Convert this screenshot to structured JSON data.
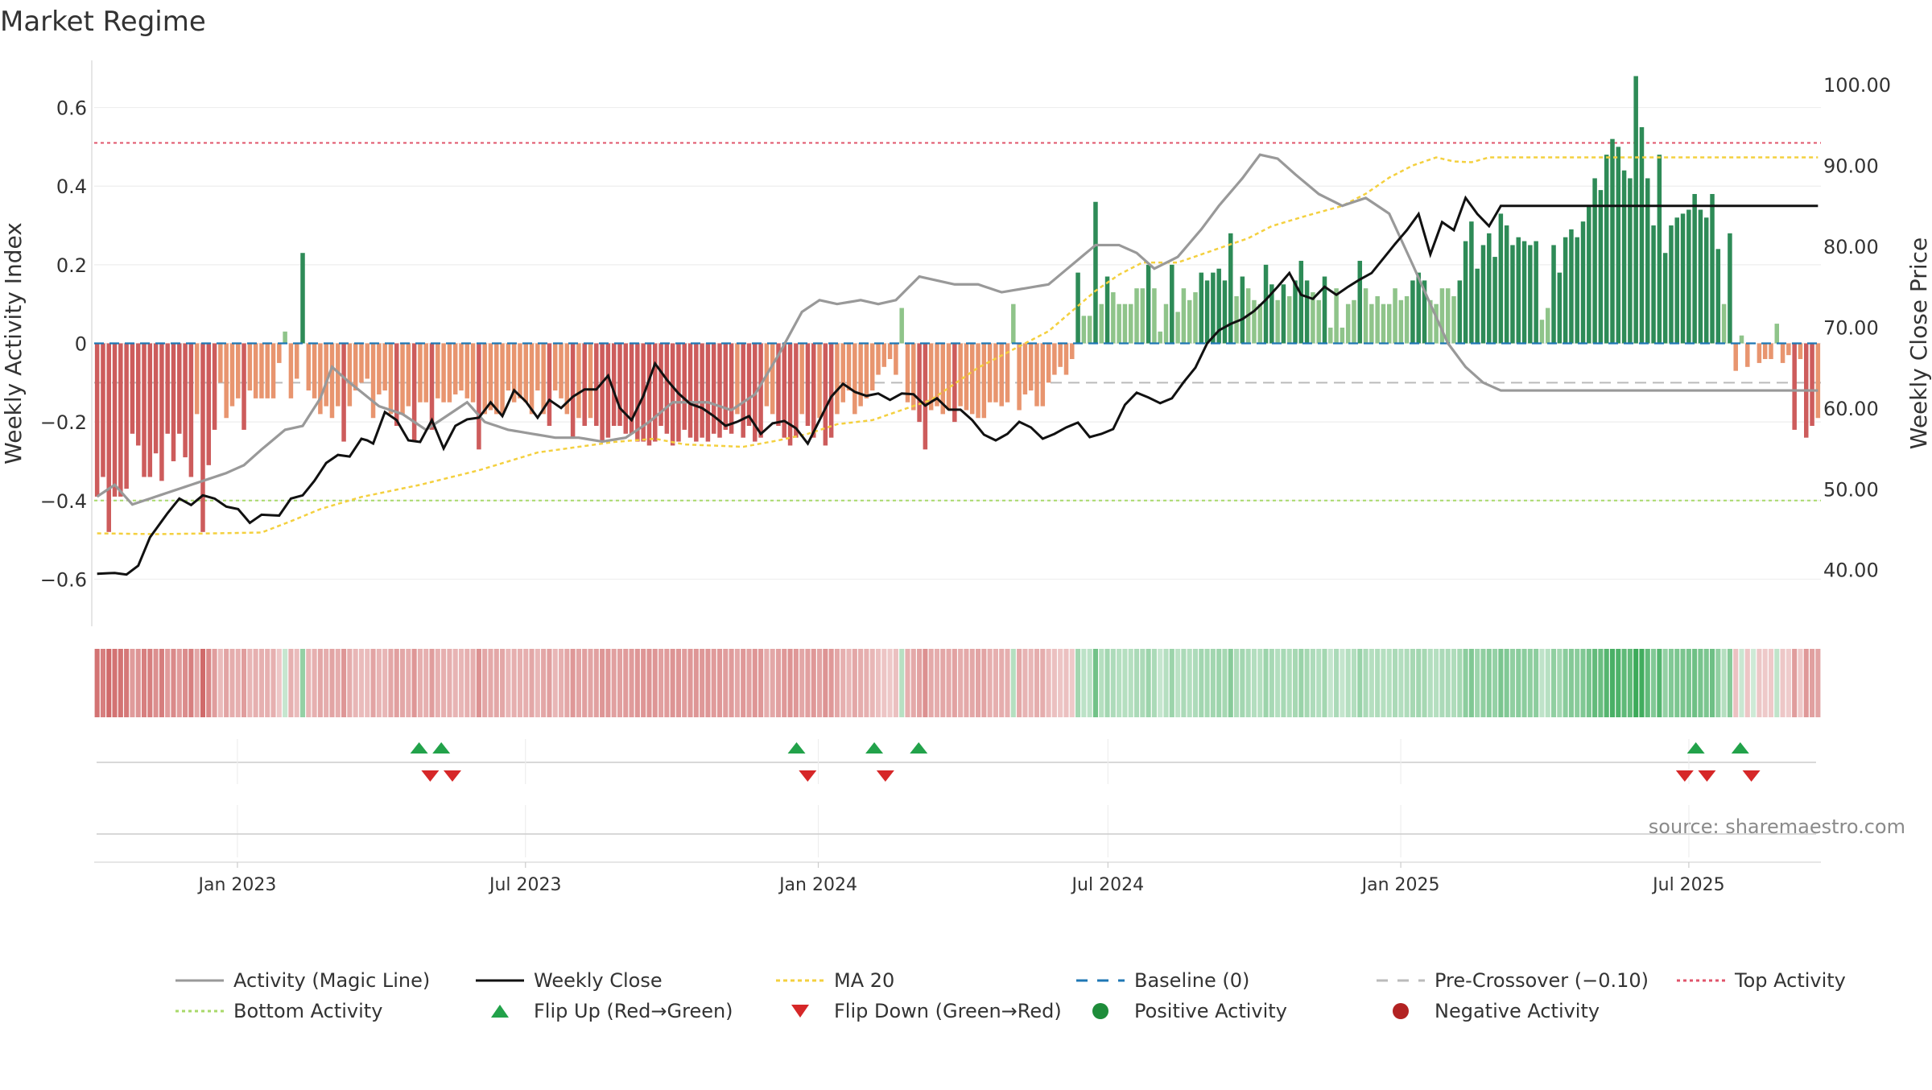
{
  "title": "Market Regime",
  "source": "source: sharemaestro.com",
  "chart_data": {
    "type": "bar",
    "title": "Market Regime",
    "x_start": "2022-10-03",
    "x_end": "2025-09-22",
    "left_axis": {
      "label": "Weekly Activity Index",
      "ylim": [
        -0.72,
        0.72
      ],
      "ticks": [
        -0.6,
        -0.4,
        -0.2,
        0,
        0.2,
        0.4,
        0.6
      ],
      "tick_labels": [
        "−0.6",
        "−0.4",
        "−0.2",
        "0",
        "0.2",
        "0.4",
        "0.6"
      ]
    },
    "right_axis": {
      "label": "Weekly Close Price",
      "ylim": [
        33,
        103
      ],
      "ticks": [
        40,
        50,
        60,
        70,
        80,
        90,
        100
      ],
      "tick_labels": [
        "40.00",
        "50.00",
        "60.00",
        "70.00",
        "80.00",
        "90.00",
        "100.00"
      ]
    },
    "x_ticks": [
      {
        "date": "2023-01-01",
        "label": "Jan 2023"
      },
      {
        "date": "2023-07-01",
        "label": "Jul 2023"
      },
      {
        "date": "2024-01-01",
        "label": "Jan 2024"
      },
      {
        "date": "2024-07-01",
        "label": "Jul 2024"
      },
      {
        "date": "2025-01-01",
        "label": "Jan 2025"
      },
      {
        "date": "2025-07-01",
        "label": "Jul 2025"
      }
    ],
    "reference_lines": {
      "top_activity": 0.51,
      "bottom_activity": -0.4,
      "pre_crossover": -0.1,
      "baseline": 0
    },
    "keypoints": {
      "activity": [
        [
          0,
          -0.39
        ],
        [
          3,
          -0.36
        ],
        [
          6,
          -0.41
        ],
        [
          10,
          -0.39
        ],
        [
          14,
          -0.37
        ],
        [
          18,
          -0.35
        ],
        [
          22,
          -0.33
        ],
        [
          25,
          -0.31
        ],
        [
          28,
          -0.27
        ],
        [
          32,
          -0.22
        ],
        [
          35,
          -0.21
        ],
        [
          38,
          -0.14
        ],
        [
          40,
          -0.06
        ],
        [
          43,
          -0.1
        ],
        [
          48,
          -0.16
        ],
        [
          52,
          -0.18
        ],
        [
          56,
          -0.22
        ],
        [
          60,
          -0.18
        ],
        [
          63,
          -0.15
        ],
        [
          66,
          -0.2
        ],
        [
          70,
          -0.22
        ],
        [
          74,
          -0.23
        ],
        [
          78,
          -0.24
        ],
        [
          82,
          -0.24
        ],
        [
          86,
          -0.25
        ],
        [
          90,
          -0.24
        ],
        [
          94,
          -0.2
        ],
        [
          98,
          -0.15
        ],
        [
          101,
          -0.15
        ],
        [
          104,
          -0.15
        ],
        [
          108,
          -0.17
        ],
        [
          112,
          -0.13
        ],
        [
          116,
          -0.03
        ],
        [
          120,
          0.08
        ],
        [
          123,
          0.11
        ],
        [
          126,
          0.1
        ],
        [
          130,
          0.11
        ],
        [
          133,
          0.1
        ],
        [
          136,
          0.11
        ],
        [
          140,
          0.17
        ],
        [
          143,
          0.16
        ],
        [
          146,
          0.15
        ],
        [
          150,
          0.15
        ],
        [
          154,
          0.13
        ],
        [
          158,
          0.14
        ],
        [
          162,
          0.15
        ],
        [
          166,
          0.2
        ],
        [
          170,
          0.25
        ],
        [
          174,
          0.25
        ],
        [
          177,
          0.23
        ],
        [
          180,
          0.19
        ],
        [
          184,
          0.22
        ],
        [
          188,
          0.29
        ],
        [
          191,
          0.35
        ],
        [
          195,
          0.42
        ],
        [
          198,
          0.48
        ],
        [
          201,
          0.47
        ],
        [
          204,
          0.43
        ],
        [
          208,
          0.38
        ],
        [
          212,
          0.35
        ],
        [
          216,
          0.37
        ],
        [
          220,
          0.33
        ],
        [
          224,
          0.2
        ],
        [
          227,
          0.1
        ],
        [
          230,
          0.0
        ],
        [
          233,
          -0.06
        ],
        [
          236,
          -0.1
        ],
        [
          239,
          -0.12
        ]
      ],
      "close": [
        [
          0,
          39.5
        ],
        [
          3,
          39.6
        ],
        [
          5,
          39.4
        ],
        [
          7,
          40.5
        ],
        [
          9,
          44
        ],
        [
          12,
          47
        ],
        [
          14,
          48.8
        ],
        [
          16,
          48
        ],
        [
          18,
          49.2
        ],
        [
          20,
          48.8
        ],
        [
          22,
          47.8
        ],
        [
          24,
          47.5
        ],
        [
          26,
          45.8
        ],
        [
          28,
          46.8
        ],
        [
          31,
          46.7
        ],
        [
          33,
          48.8
        ],
        [
          35,
          49.2
        ],
        [
          37,
          51
        ],
        [
          39,
          53.2
        ],
        [
          41,
          54.2
        ],
        [
          43,
          54
        ],
        [
          45,
          56.2
        ],
        [
          46,
          56
        ],
        [
          47,
          55.6
        ],
        [
          49,
          59.5
        ],
        [
          51,
          58.5
        ],
        [
          53,
          56
        ],
        [
          55,
          55.8
        ],
        [
          57,
          58.5
        ],
        [
          59,
          55
        ],
        [
          61,
          57.8
        ],
        [
          63,
          58.6
        ],
        [
          65,
          58.8
        ],
        [
          67,
          60.7
        ],
        [
          69,
          59
        ],
        [
          71,
          62.2
        ],
        [
          73,
          60.8
        ],
        [
          75,
          58.8
        ],
        [
          77,
          61
        ],
        [
          79,
          60
        ],
        [
          81,
          61.4
        ],
        [
          83,
          62.3
        ],
        [
          85,
          62.3
        ],
        [
          87,
          64
        ],
        [
          89,
          60
        ],
        [
          91,
          58.5
        ],
        [
          93,
          61.5
        ],
        [
          95,
          65.5
        ],
        [
          97,
          63.5
        ],
        [
          99,
          61.8
        ],
        [
          101,
          60.5
        ],
        [
          103,
          60
        ],
        [
          105,
          59
        ],
        [
          107,
          57.8
        ],
        [
          109,
          58.3
        ],
        [
          111,
          59
        ],
        [
          113,
          56.8
        ],
        [
          115,
          58.1
        ],
        [
          117,
          58.4
        ],
        [
          119,
          57.5
        ],
        [
          121,
          55.6
        ],
        [
          123,
          58.5
        ],
        [
          125,
          61.4
        ],
        [
          127,
          63
        ],
        [
          129,
          62
        ],
        [
          131,
          61.5
        ],
        [
          133,
          61.8
        ],
        [
          135,
          61
        ],
        [
          137,
          61.8
        ],
        [
          139,
          61.7
        ],
        [
          141,
          60.3
        ],
        [
          143,
          61.2
        ],
        [
          145,
          59.8
        ],
        [
          147,
          59.8
        ],
        [
          149,
          58.5
        ],
        [
          151,
          56.7
        ],
        [
          153,
          56
        ],
        [
          155,
          56.8
        ],
        [
          157,
          58.3
        ],
        [
          159,
          57.6
        ],
        [
          161,
          56.2
        ],
        [
          163,
          56.8
        ],
        [
          165,
          57.6
        ],
        [
          167,
          58.2
        ],
        [
          169,
          56.4
        ],
        [
          171,
          56.8
        ],
        [
          173,
          57.4
        ],
        [
          175,
          60.4
        ],
        [
          177,
          61.9
        ],
        [
          179,
          61.3
        ],
        [
          181,
          60.6
        ],
        [
          183,
          61.2
        ],
        [
          185,
          63.2
        ],
        [
          187,
          65
        ],
        [
          189,
          68
        ],
        [
          191,
          69.6
        ],
        [
          193,
          70.4
        ],
        [
          195,
          71
        ],
        [
          197,
          72
        ],
        [
          199,
          73.4
        ],
        [
          201,
          75
        ],
        [
          203,
          76.7
        ],
        [
          205,
          74
        ],
        [
          207,
          73.5
        ],
        [
          209,
          75
        ],
        [
          211,
          74
        ],
        [
          213,
          75
        ],
        [
          215,
          75.9
        ],
        [
          217,
          76.7
        ],
        [
          219,
          78.5
        ],
        [
          221,
          80.3
        ],
        [
          223,
          82
        ],
        [
          225,
          84
        ],
        [
          227,
          79
        ],
        [
          229,
          83
        ],
        [
          231,
          82
        ],
        [
          233,
          86
        ],
        [
          235,
          84
        ],
        [
          237,
          82.5
        ],
        [
          239,
          85
        ]
      ],
      "ma20": [
        [
          0,
          44.5
        ],
        [
          10,
          44.4
        ],
        [
          20,
          44.5
        ],
        [
          28,
          44.6
        ],
        [
          33,
          46
        ],
        [
          38,
          47.5
        ],
        [
          45,
          49
        ],
        [
          55,
          50.5
        ],
        [
          65,
          52.3
        ],
        [
          75,
          54.5
        ],
        [
          88,
          55.8
        ],
        [
          95,
          56.2
        ],
        [
          100,
          55.5
        ],
        [
          110,
          55.2
        ],
        [
          116,
          56
        ],
        [
          121,
          56.8
        ],
        [
          126,
          58
        ],
        [
          132,
          58.5
        ],
        [
          138,
          60
        ],
        [
          142,
          61
        ],
        [
          146,
          63
        ],
        [
          150,
          65
        ],
        [
          154,
          66.5
        ],
        [
          158,
          68
        ],
        [
          162,
          69.5
        ],
        [
          166,
          72
        ],
        [
          170,
          74.5
        ],
        [
          174,
          76.5
        ],
        [
          178,
          78
        ],
        [
          184,
          78
        ],
        [
          190,
          79.5
        ],
        [
          196,
          81
        ],
        [
          200,
          82.5
        ],
        [
          206,
          83.8
        ],
        [
          212,
          85
        ],
        [
          216,
          86.5
        ],
        [
          220,
          88.5
        ],
        [
          224,
          90
        ],
        [
          228,
          91
        ],
        [
          231,
          90.5
        ],
        [
          234,
          90.4
        ],
        [
          237,
          91
        ],
        [
          239,
          91
        ]
      ]
    },
    "flips_up": [
      "2023-04-24",
      "2023-05-08",
      "2023-12-18",
      "2024-02-05",
      "2024-03-04",
      "2025-07-07",
      "2025-08-04"
    ],
    "flips_down": [
      "2023-05-01",
      "2023-05-15",
      "2023-12-25",
      "2024-02-12",
      "2025-06-30",
      "2025-07-14",
      "2025-08-11"
    ],
    "series": [
      {
        "name": "Activity (Magic Line)",
        "color": "#999999"
      },
      {
        "name": "Weekly Close",
        "color": "#000000"
      },
      {
        "name": "MA 20",
        "color": "#f4d03f"
      },
      {
        "name": "Baseline (0)",
        "color": "#1f77b4"
      },
      {
        "name": "Pre-Crossover (−0.10)",
        "color": "#bbbbbb"
      },
      {
        "name": "Top Activity",
        "color": "#e0546b"
      },
      {
        "name": "Bottom Activity",
        "color": "#a8d96a"
      },
      {
        "name": "Flip Up (Red→Green)",
        "color": "#22a24a"
      },
      {
        "name": "Flip Down (Green→Red)",
        "color": "#d62728"
      },
      {
        "name": "Positive Activity",
        "color": "#1e8c3a"
      },
      {
        "name": "Negative Activity",
        "color": "#b22222"
      }
    ],
    "bar_colors": {
      "pos_strong": "#2e8b57",
      "pos_weak": "#8fc48a",
      "neg_strong": "#cd5c5c",
      "neg_weak": "#e8956f"
    },
    "activity_values": [
      -0.39,
      -0.34,
      -0.48,
      -0.39,
      -0.39,
      -0.37,
      -0.23,
      -0.26,
      -0.34,
      -0.34,
      -0.28,
      -0.35,
      -0.23,
      -0.3,
      -0.23,
      -0.29,
      -0.34,
      -0.18,
      -0.48,
      -0.31,
      -0.22,
      -0.1,
      -0.19,
      -0.16,
      -0.14,
      -0.22,
      -0.12,
      -0.14,
      -0.14,
      -0.14,
      -0.14,
      -0.05,
      0.03,
      -0.14,
      -0.09,
      0.23,
      -0.12,
      -0.14,
      -0.18,
      -0.16,
      -0.19,
      -0.16,
      -0.25,
      -0.16,
      -0.12,
      -0.1,
      -0.09,
      -0.19,
      -0.13,
      -0.12,
      -0.18,
      -0.21,
      -0.18,
      -0.16,
      -0.25,
      -0.15,
      -0.15,
      -0.22,
      -0.14,
      -0.15,
      -0.15,
      -0.13,
      -0.12,
      -0.14,
      -0.15,
      -0.27,
      -0.18,
      -0.17,
      -0.18,
      -0.18,
      -0.12,
      -0.15,
      -0.14,
      -0.15,
      -0.18,
      -0.12,
      -0.18,
      -0.21,
      -0.12,
      -0.14,
      -0.18,
      -0.24,
      -0.19,
      -0.21,
      -0.19,
      -0.21,
      -0.25,
      -0.24,
      -0.21,
      -0.21,
      -0.23,
      -0.23,
      -0.25,
      -0.25,
      -0.26,
      -0.25,
      -0.21,
      -0.23,
      -0.26,
      -0.25,
      -0.22,
      -0.24,
      -0.25,
      -0.24,
      -0.25,
      -0.23,
      -0.24,
      -0.22,
      -0.23,
      -0.18,
      -0.24,
      -0.21,
      -0.25,
      -0.24,
      -0.16,
      -0.18,
      -0.21,
      -0.24,
      -0.26,
      -0.24,
      -0.18,
      -0.21,
      -0.24,
      -0.19,
      -0.26,
      -0.24,
      -0.18,
      -0.15,
      -0.12,
      -0.18,
      -0.16,
      -0.14,
      -0.12,
      -0.08,
      -0.06,
      -0.04,
      -0.08,
      0.09,
      -0.15,
      -0.17,
      -0.2,
      -0.27,
      -0.17,
      -0.16,
      -0.18,
      -0.17,
      -0.2,
      -0.16,
      -0.17,
      -0.18,
      -0.19,
      -0.19,
      -0.15,
      -0.15,
      -0.16,
      -0.15,
      0.1,
      -0.17,
      -0.13,
      -0.12,
      -0.16,
      -0.16,
      -0.1,
      -0.08,
      -0.06,
      -0.08,
      -0.04,
      0.18,
      0.07,
      0.07,
      0.36,
      0.1,
      0.17,
      0.13,
      0.1,
      0.1,
      0.1,
      0.14,
      0.14,
      0.2,
      0.14,
      0.03,
      0.1,
      0.2,
      0.08,
      0.14,
      0.11,
      0.13,
      0.18,
      0.16,
      0.18,
      0.19,
      0.16,
      0.28,
      0.12,
      0.17,
      0.14,
      0.11,
      0.1,
      0.2,
      0.15,
      0.11,
      0.15,
      0.12,
      0.16,
      0.21,
      0.16,
      0.13,
      0.11,
      0.17,
      0.04,
      0.14,
      0.04,
      0.1,
      0.11,
      0.21,
      0.14,
      0.1,
      0.12,
      0.1,
      0.1,
      0.14,
      0.11,
      0.12,
      0.16,
      0.18,
      0.16,
      0.11,
      0.1,
      0.14,
      0.14,
      0.12,
      0.16,
      0.26,
      0.31,
      0.19,
      0.25,
      0.28,
      0.22,
      0.33,
      0.3,
      0.25,
      0.27,
      0.26,
      0.25,
      0.26,
      0.06,
      0.09,
      0.25,
      0.18,
      0.27,
      0.29,
      0.27,
      0.31,
      0.35,
      0.42,
      0.39,
      0.48,
      0.52,
      0.5,
      0.44,
      0.42,
      0.68,
      0.55,
      0.42,
      0.3,
      0.48,
      0.23,
      0.3,
      0.32,
      0.33,
      0.34,
      0.38,
      0.34,
      0.32,
      0.38,
      0.24,
      0.1,
      0.28,
      -0.07,
      0.02,
      -0.06,
      0.0,
      -0.05,
      -0.04,
      -0.04,
      0.05,
      -0.05,
      -0.03,
      -0.22,
      -0.04,
      -0.24,
      -0.21,
      -0.19
    ]
  },
  "legend": [
    {
      "label": "Activity (Magic Line)",
      "kind": "line-solid-gray"
    },
    {
      "label": "Weekly Close",
      "kind": "line-solid-black"
    },
    {
      "label": "MA 20",
      "kind": "line-dot-yellow"
    },
    {
      "label": "Baseline (0)",
      "kind": "line-dash-blue"
    },
    {
      "label": "Pre-Crossover (−0.10)",
      "kind": "line-dash-gray"
    },
    {
      "label": "Top Activity",
      "kind": "line-dot-pink"
    },
    {
      "label": "Bottom Activity",
      "kind": "line-dot-green"
    },
    {
      "label": "Flip Up (Red→Green)",
      "kind": "triangle-up-green"
    },
    {
      "label": "Flip Down (Green→Red)",
      "kind": "triangle-down-red"
    },
    {
      "label": "Positive Activity",
      "kind": "dot-green"
    },
    {
      "label": "Negative Activity",
      "kind": "dot-red"
    }
  ]
}
